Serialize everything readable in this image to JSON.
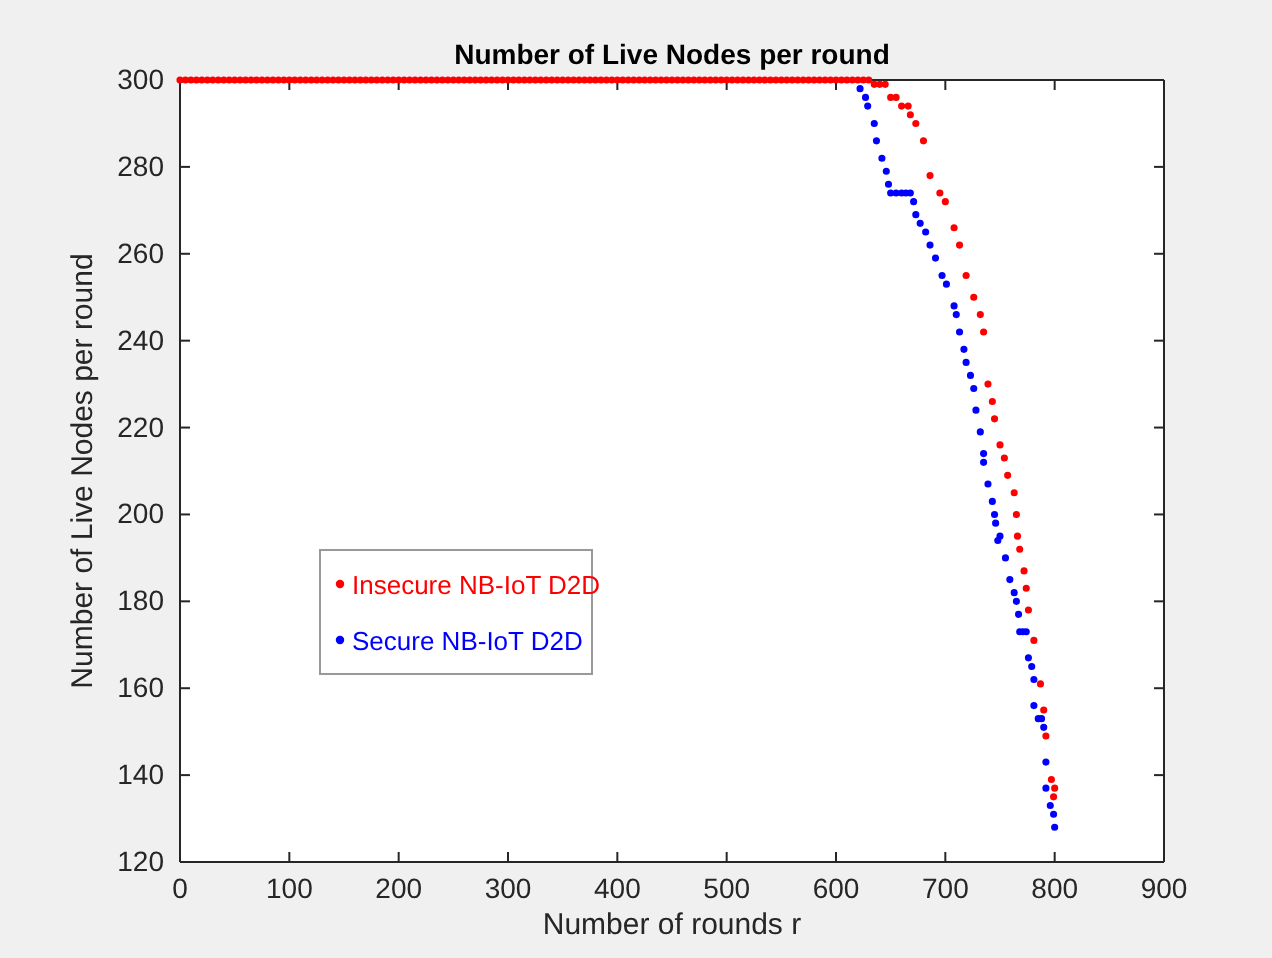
{
  "chart_data": {
    "type": "scatter",
    "title": "Number of Live Nodes per round",
    "xlabel": "Number of rounds r",
    "ylabel": "Number of Live Nodes per round",
    "xlim": [
      0,
      900
    ],
    "ylim": [
      120,
      300
    ],
    "xticks": [
      0,
      100,
      200,
      300,
      400,
      500,
      600,
      700,
      800,
      900
    ],
    "yticks": [
      120,
      140,
      160,
      180,
      200,
      220,
      240,
      260,
      280,
      300
    ],
    "grid": false,
    "legend": "left",
    "marker": "circle",
    "series": [
      {
        "name": "Secure NB-IoT D2D",
        "color": "#0000ff",
        "x": [
          622,
          627,
          629,
          635,
          637,
          642,
          646,
          648,
          650,
          655,
          660,
          664,
          668,
          671,
          673,
          677,
          682,
          686,
          691,
          697,
          701,
          708,
          710,
          713,
          717,
          719,
          723,
          726,
          728,
          732,
          735,
          735,
          739,
          743,
          745,
          746,
          750,
          748,
          755,
          759,
          763,
          765,
          767,
          768,
          771,
          774,
          776,
          779,
          781,
          781,
          785,
          788,
          790,
          792,
          792,
          796,
          799,
          800
        ],
        "values": [
          298,
          296,
          294,
          290,
          286,
          282,
          279,
          276,
          274,
          274,
          274,
          274,
          274,
          272,
          269,
          267,
          265,
          262,
          259,
          255,
          253,
          248,
          246,
          242,
          238,
          235,
          232,
          229,
          224,
          219,
          214,
          212,
          207,
          203,
          200,
          198,
          195,
          194,
          190,
          185,
          182,
          180,
          177,
          173,
          173,
          173,
          167,
          165,
          162,
          156,
          153,
          153,
          151,
          143,
          137,
          133,
          131,
          128
        ]
      },
      {
        "name": "Insecure NB-IoT D2D",
        "color": "#ff0000",
        "x": [
          0,
          5,
          10,
          15,
          20,
          25,
          30,
          35,
          40,
          45,
          50,
          55,
          60,
          65,
          70,
          75,
          80,
          85,
          90,
          95,
          100,
          105,
          110,
          115,
          120,
          125,
          130,
          135,
          140,
          145,
          150,
          155,
          160,
          165,
          170,
          175,
          180,
          185,
          190,
          195,
          200,
          205,
          210,
          215,
          220,
          225,
          230,
          235,
          240,
          245,
          250,
          255,
          260,
          265,
          270,
          275,
          280,
          285,
          290,
          295,
          300,
          305,
          310,
          315,
          320,
          325,
          330,
          335,
          340,
          345,
          350,
          355,
          360,
          365,
          370,
          375,
          380,
          385,
          390,
          395,
          400,
          405,
          410,
          415,
          420,
          425,
          430,
          435,
          440,
          445,
          450,
          455,
          460,
          465,
          470,
          475,
          480,
          485,
          490,
          495,
          500,
          505,
          510,
          515,
          520,
          525,
          530,
          535,
          540,
          545,
          550,
          555,
          560,
          565,
          570,
          575,
          580,
          585,
          590,
          595,
          600,
          605,
          610,
          615,
          620,
          625,
          630,
          635,
          640,
          645,
          650,
          655,
          660,
          666,
          668,
          673,
          680,
          686,
          695,
          700,
          708,
          713,
          719,
          726,
          732,
          735,
          739,
          743,
          745,
          750,
          754,
          757,
          763,
          765,
          766,
          768,
          772,
          774,
          776,
          781,
          787,
          790,
          792,
          797,
          799,
          800
        ],
        "values": [
          300,
          300,
          300,
          300,
          300,
          300,
          300,
          300,
          300,
          300,
          300,
          300,
          300,
          300,
          300,
          300,
          300,
          300,
          300,
          300,
          300,
          300,
          300,
          300,
          300,
          300,
          300,
          300,
          300,
          300,
          300,
          300,
          300,
          300,
          300,
          300,
          300,
          300,
          300,
          300,
          300,
          300,
          300,
          300,
          300,
          300,
          300,
          300,
          300,
          300,
          300,
          300,
          300,
          300,
          300,
          300,
          300,
          300,
          300,
          300,
          300,
          300,
          300,
          300,
          300,
          300,
          300,
          300,
          300,
          300,
          300,
          300,
          300,
          300,
          300,
          300,
          300,
          300,
          300,
          300,
          300,
          300,
          300,
          300,
          300,
          300,
          300,
          300,
          300,
          300,
          300,
          300,
          300,
          300,
          300,
          300,
          300,
          300,
          300,
          300,
          300,
          300,
          300,
          300,
          300,
          300,
          300,
          300,
          300,
          300,
          300,
          300,
          300,
          300,
          300,
          300,
          300,
          300,
          300,
          300,
          300,
          300,
          300,
          300,
          300,
          300,
          300,
          299,
          299,
          299,
          296,
          296,
          294,
          294,
          292,
          290,
          286,
          278,
          274,
          272,
          266,
          262,
          255,
          250,
          246,
          242,
          230,
          226,
          222,
          216,
          213,
          209,
          205,
          200,
          195,
          192,
          187,
          183,
          178,
          171,
          161,
          155,
          149,
          139,
          135,
          137
        ]
      }
    ]
  }
}
